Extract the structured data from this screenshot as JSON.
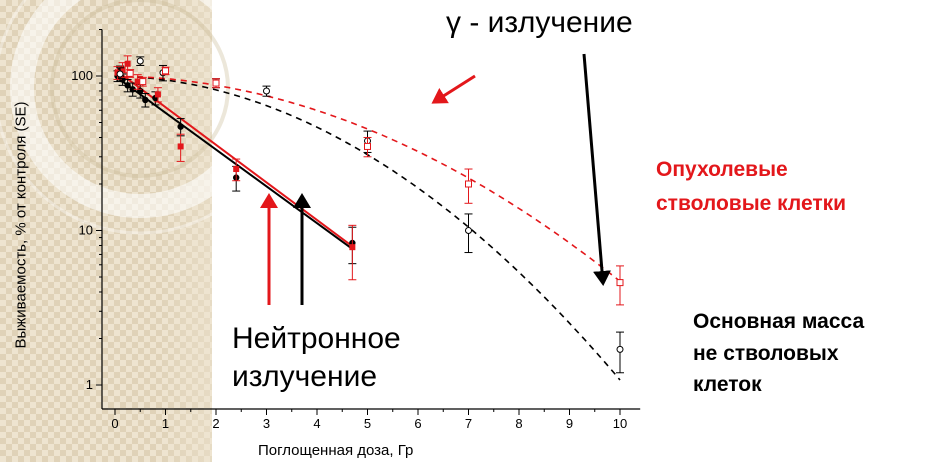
{
  "chart_data": {
    "type": "scatter",
    "title": "",
    "xlabel": "Поглощенная доза, Гр",
    "ylabel": "Выживаемость, % от контроля (SE)",
    "xlim": [
      -0.2,
      10.4
    ],
    "ylim": [
      0.8,
      200
    ],
    "yscale": "log",
    "xticks": [
      "0",
      "1",
      "2",
      "3",
      "4",
      "5",
      "6",
      "7",
      "8",
      "9",
      "10"
    ],
    "yticks": [
      "1",
      "10",
      "100"
    ],
    "grid": false,
    "annotations": {
      "gamma": "γ - излучение",
      "neutron_line1": "Нейтронное",
      "neutron_line2": "излучение",
      "stem_line1": "Опухолевые",
      "stem_line2": "стволовые клетки",
      "bulk_line1": "Основная масса",
      "bulk_line2": "не стволовых",
      "bulk_line3": "клеток"
    },
    "series": [
      {
        "color": "#000000",
        "marker": "filled-circle",
        "points": [
          {
            "x": 0.05,
            "y": 100,
            "err": 8
          },
          {
            "x": 0.1,
            "y": 108,
            "err": 8
          },
          {
            "x": 0.15,
            "y": 95,
            "err": 8
          },
          {
            "x": 0.25,
            "y": 87,
            "err": 8
          },
          {
            "x": 0.35,
            "y": 82,
            "err": 8
          },
          {
            "x": 0.5,
            "y": 80,
            "err": 8
          },
          {
            "x": 0.6,
            "y": 70,
            "err": 7
          },
          {
            "x": 0.8,
            "y": 72,
            "err": 7
          },
          {
            "x": 1.3,
            "y": 47,
            "err": 6
          },
          {
            "x": 2.4,
            "y": 22,
            "err": 4
          },
          {
            "x": 4.7,
            "y": 8.3,
            "err": 2.2
          }
        ],
        "fit": {
          "style": "solid",
          "from": [
            0,
            100
          ],
          "to": [
            4.7,
            7.6
          ]
        }
      },
      {
        "color": "#e3171b",
        "marker": "filled-square",
        "points": [
          {
            "x": 0.05,
            "y": 105,
            "err": 10
          },
          {
            "x": 0.15,
            "y": 110,
            "err": 12
          },
          {
            "x": 0.25,
            "y": 120,
            "err": 15
          },
          {
            "x": 0.45,
            "y": 92,
            "err": 10
          },
          {
            "x": 0.85,
            "y": 76,
            "err": 8
          },
          {
            "x": 1.3,
            "y": 35,
            "err": 7
          },
          {
            "x": 2.4,
            "y": 25,
            "err": 4
          },
          {
            "x": 4.7,
            "y": 7.8,
            "err": 3
          }
        ],
        "fit": {
          "style": "solid",
          "from": [
            0,
            110
          ],
          "to": [
            4.7,
            7.9
          ]
        }
      },
      {
        "color": "#000000",
        "marker": "open-circle",
        "points": [
          {
            "x": 0.1,
            "y": 103,
            "err": 10
          },
          {
            "x": 0.5,
            "y": 125,
            "err": 8
          },
          {
            "x": 0.95,
            "y": 105,
            "err": 12
          },
          {
            "x": 2.0,
            "y": 90,
            "err": 6
          },
          {
            "x": 3.0,
            "y": 80,
            "err": 6
          },
          {
            "x": 5.0,
            "y": 38,
            "err": 6
          },
          {
            "x": 7.0,
            "y": 10,
            "err": 2.8
          },
          {
            "x": 10.0,
            "y": 1.7,
            "err": 0.5
          }
        ],
        "fit": {
          "style": "dashed",
          "alpha": 0.016,
          "beta": 0.0437
        }
      },
      {
        "color": "#e3171b",
        "marker": "open-square",
        "points": [
          {
            "x": 0.3,
            "y": 104,
            "err": 6
          },
          {
            "x": 0.55,
            "y": 92,
            "err": 6
          },
          {
            "x": 1.0,
            "y": 108,
            "err": 6
          },
          {
            "x": 2.0,
            "y": 90,
            "err": 6
          },
          {
            "x": 5.0,
            "y": 35,
            "err": 5
          },
          {
            "x": 7.0,
            "y": 20,
            "err": 5
          },
          {
            "x": 10.0,
            "y": 4.6,
            "err": 1.3
          }
        ],
        "fit": {
          "style": "dashed",
          "alpha": 0.01,
          "beta": 0.0296
        }
      }
    ]
  },
  "arrows": [
    {
      "color": "#e3171b",
      "target": "neutron-red-fit"
    },
    {
      "color": "#000000",
      "target": "neutron-black-fit"
    },
    {
      "color": "#e3171b",
      "target": "gamma-red-fit"
    },
    {
      "color": "#000000",
      "target": "gamma-black-fit"
    }
  ]
}
